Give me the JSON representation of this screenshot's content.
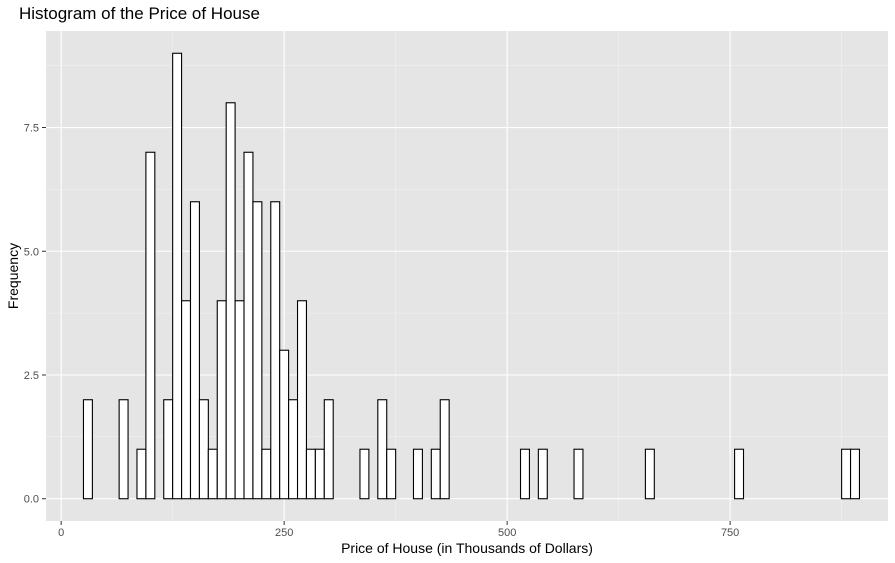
{
  "chart_data": {
    "type": "bar",
    "title": "Histogram of the Price of House",
    "xlabel": "Price of House (in Thousands of Dollars)",
    "ylabel": "Frequency",
    "xlim": [
      -17,
      927
    ],
    "ylim": [
      -0.45,
      9.45
    ],
    "x_ticks": [
      0,
      250,
      500,
      750
    ],
    "x_tick_labels": [
      "0",
      "250",
      "500",
      "750"
    ],
    "y_ticks": [
      0,
      2.5,
      5,
      7.5
    ],
    "y_tick_labels": [
      "0.0",
      "2.5",
      "5.0",
      "7.5"
    ],
    "bin_width": 10,
    "bins_start": 25,
    "values": [
      2,
      0,
      0,
      0,
      2,
      0,
      1,
      7,
      0,
      2,
      9,
      4,
      6,
      2,
      1,
      4,
      8,
      4,
      7,
      6,
      1,
      6,
      3,
      2,
      4,
      1,
      1,
      2,
      0,
      0,
      0,
      1,
      0,
      2,
      1,
      0,
      0,
      1,
      0,
      1,
      2,
      0,
      0,
      0,
      0,
      0,
      0,
      0,
      0,
      1,
      0,
      1,
      0,
      0,
      0,
      1,
      0,
      0,
      0,
      0,
      0,
      0,
      0,
      1,
      0,
      0,
      0,
      0,
      0,
      0,
      0,
      0,
      0,
      1,
      0,
      0,
      0,
      0,
      0,
      0,
      0,
      0,
      0,
      0,
      0,
      1,
      1
    ],
    "bar_fill": "#ffffff",
    "bar_stroke": "#000000",
    "panel_background": "#e5e5e5",
    "grid": true,
    "legend": "none"
  }
}
